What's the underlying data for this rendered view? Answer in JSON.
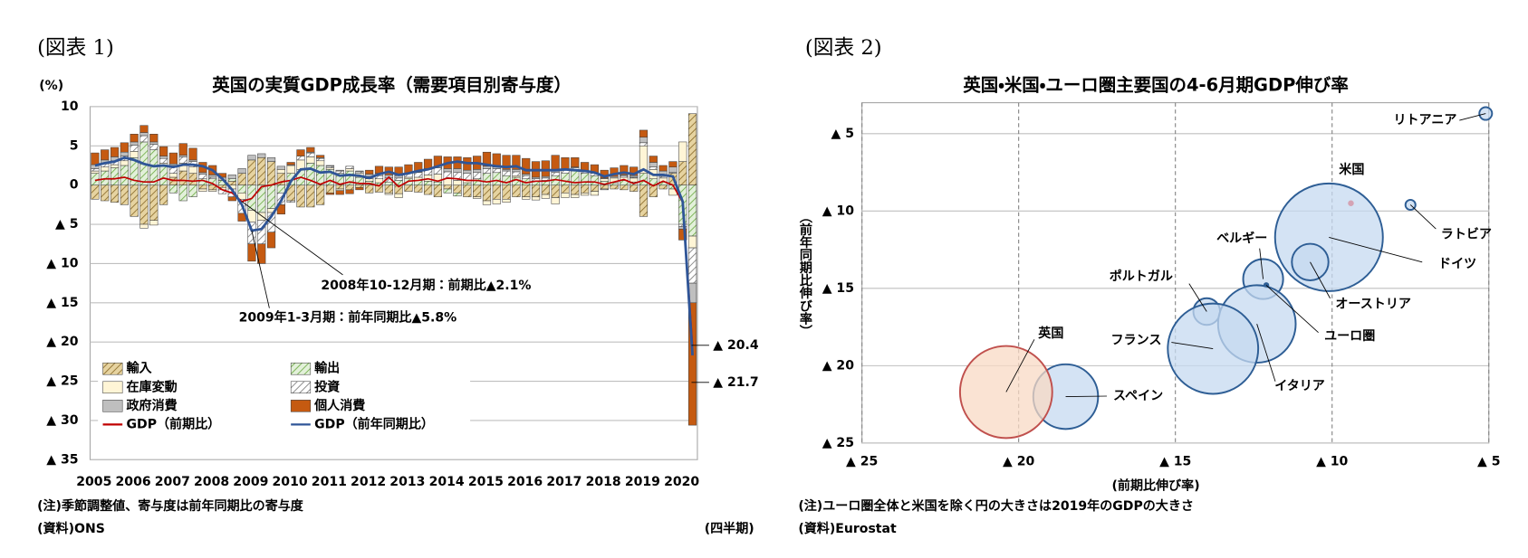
{
  "chart_data": [
    {
      "type": "bar",
      "figure_label": "(図表 1)",
      "title": "英国の実質GDP成長率（需要項目別寄与度）",
      "y_label": "(%)",
      "period_label": "(四半期)",
      "notes": [
        "(注)季節調整値、寄与度は前年同期比の寄与度",
        "(資料)ONS"
      ],
      "ylim": [
        -35,
        10
      ],
      "yticks": [
        10,
        5,
        0,
        {
          "value": -5,
          "label": "▲ 5"
        },
        {
          "value": -10,
          "label": "▲ 10"
        },
        {
          "value": -15,
          "label": "▲ 15"
        },
        {
          "value": -20,
          "label": "▲ 20"
        },
        {
          "value": -25,
          "label": "▲ 25"
        },
        {
          "value": -30,
          "label": "▲ 30"
        },
        {
          "value": -35,
          "label": "▲ 35"
        }
      ],
      "grid": true,
      "categories": [
        "2005",
        null,
        null,
        null,
        "2006",
        null,
        null,
        null,
        "2007",
        null,
        null,
        null,
        "2008",
        null,
        null,
        null,
        "2009",
        null,
        null,
        null,
        "2010",
        null,
        null,
        null,
        "2011",
        null,
        null,
        null,
        "2012",
        null,
        null,
        null,
        "2013",
        null,
        null,
        null,
        "2014",
        null,
        null,
        null,
        "2015",
        null,
        null,
        null,
        "2016",
        null,
        null,
        null,
        "2017",
        null,
        null,
        null,
        "2018",
        null,
        null,
        null,
        "2019",
        null,
        null,
        null,
        "2020",
        null
      ],
      "series": [
        {
          "name": "輸入",
          "type": "bar",
          "color": "#e6d3a0",
          "pattern": "hatch",
          "stripe_color": "#8c6d2c",
          "values": [
            -1.8,
            -2.0,
            -2.2,
            -2.5,
            -4.0,
            -5.0,
            -4.5,
            -2.5,
            1.0,
            1.8,
            1.5,
            -0.5,
            -0.6,
            -0.3,
            0.5,
            1.5,
            3.2,
            3.5,
            3.0,
            1.5,
            -2.0,
            -2.8,
            -2.8,
            -2.5,
            -1.0,
            -0.5,
            -0.6,
            -0.3,
            -1.0,
            -0.9,
            -1.0,
            -1.1,
            -0.8,
            -0.9,
            -1.2,
            -1.5,
            -0.5,
            -1.0,
            -1.5,
            -1.5,
            -2.0,
            -1.8,
            -1.8,
            -1.5,
            -1.5,
            -1.5,
            -1.2,
            -1.6,
            -1.0,
            -1.2,
            -1.0,
            -0.8,
            -0.5,
            -0.5,
            -0.6,
            -0.8,
            -4.0,
            -1.5,
            -0.5,
            1.5,
            3.0,
            9.1
          ]
        },
        {
          "name": "輸出",
          "type": "bar",
          "color": "#e2f0d9",
          "pattern": "hatch",
          "stripe_color": "#70ad47",
          "values": [
            1.5,
            1.8,
            2.2,
            2.5,
            3.5,
            5.5,
            4.5,
            2.5,
            -1.0,
            -2.0,
            -1.5,
            0.8,
            0.8,
            0.6,
            0.3,
            -1.0,
            -3.2,
            -3.5,
            -3.0,
            -1.0,
            1.5,
            2.0,
            2.8,
            2.5,
            2.0,
            1.5,
            1.8,
            1.0,
            0.5,
            0.3,
            0.4,
            0.6,
            0.8,
            0.6,
            0.5,
            0.4,
            -0.5,
            -0.4,
            0.3,
            0.8,
            1.5,
            1.6,
            1.2,
            1.0,
            0.8,
            0.5,
            0.6,
            1.2,
            1.5,
            1.8,
            1.5,
            1.2,
            0.5,
            0.3,
            0.6,
            0.4,
            1.5,
            0.8,
            0.4,
            -0.5,
            -5.0,
            -6.5
          ]
        },
        {
          "name": "在庫変動",
          "type": "bar",
          "color": "#fff5d6",
          "values": [
            0.3,
            0.5,
            0.4,
            0.6,
            0.8,
            -0.5,
            -0.6,
            0.3,
            0.5,
            1.0,
            0.8,
            -0.3,
            -0.2,
            -0.3,
            -0.5,
            -0.8,
            -1.5,
            -1.0,
            -0.5,
            0.5,
            1.0,
            1.2,
            0.8,
            0.6,
            0.2,
            -0.2,
            0.3,
            0.5,
            0.3,
            0.5,
            -0.2,
            -0.5,
            0.2,
            0.4,
            0.8,
            1.0,
            0.8,
            0.6,
            0.3,
            -0.2,
            -0.5,
            -0.6,
            -0.4,
            0.2,
            -0.3,
            -0.4,
            -0.5,
            -0.8,
            -0.6,
            -0.4,
            -0.3,
            -0.5,
            0.3,
            0.6,
            0.4,
            0.5,
            3.5,
            1.2,
            0.5,
            -0.8,
            2.5,
            -1.5
          ]
        },
        {
          "name": "投資",
          "type": "bar",
          "color": "#ffffff",
          "pattern": "hatch",
          "stripe_color": "#7f7f7f",
          "values": [
            0.3,
            0.4,
            0.5,
            0.6,
            0.8,
            0.8,
            0.7,
            0.6,
            1.0,
            0.8,
            0.7,
            0.6,
            0.2,
            -0.5,
            -1.0,
            -1.8,
            -2.8,
            -3.0,
            -2.5,
            -1.5,
            -0.2,
            0.5,
            0.5,
            0.3,
            0.2,
            0.3,
            0.3,
            0.2,
            0.3,
            0.4,
            0.5,
            0.3,
            0.5,
            0.6,
            0.7,
            0.8,
            0.9,
            1.0,
            0.9,
            0.8,
            0.6,
            0.5,
            0.6,
            0.5,
            0.4,
            0.3,
            0.3,
            0.4,
            0.5,
            0.4,
            0.3,
            0.3,
            -0.1,
            0.0,
            0.2,
            0.1,
            0.4,
            0.3,
            0.2,
            0.1,
            -0.3,
            -4.5
          ]
        },
        {
          "name": "政府消費",
          "type": "bar",
          "color": "#bfbfbf",
          "values": [
            0.5,
            0.5,
            0.5,
            0.5,
            0.4,
            0.4,
            0.3,
            0.3,
            0.2,
            0.2,
            0.2,
            0.2,
            0.3,
            0.4,
            0.5,
            0.6,
            0.6,
            0.5,
            0.5,
            0.4,
            0.1,
            0.0,
            0.1,
            0.1,
            0.1,
            0.1,
            0.0,
            0.1,
            0.3,
            0.3,
            0.4,
            0.3,
            0.0,
            0.1,
            0.1,
            0.2,
            0.4,
            0.5,
            0.4,
            0.4,
            0.3,
            0.2,
            0.2,
            0.3,
            0.2,
            0.2,
            0.2,
            0.2,
            0.0,
            0.1,
            0.1,
            0.1,
            0.1,
            0.2,
            0.1,
            0.2,
            0.7,
            0.6,
            0.7,
            0.7,
            -0.3,
            -2.5
          ]
        },
        {
          "name": "個人消費",
          "type": "bar",
          "color": "#c55a11",
          "values": [
            1.5,
            1.3,
            1.2,
            1.2,
            1.0,
            0.9,
            1.0,
            1.2,
            1.4,
            1.5,
            1.5,
            1.3,
            1.2,
            0.5,
            -0.5,
            -1.0,
            -2.2,
            -2.5,
            -2.0,
            -1.2,
            0.3,
            0.8,
            0.6,
            0.3,
            -0.2,
            -0.5,
            -0.5,
            -0.3,
            0.5,
            0.9,
            1.0,
            1.1,
            1.1,
            1.2,
            1.2,
            1.3,
            1.5,
            1.5,
            1.6,
            1.7,
            1.8,
            1.7,
            1.8,
            1.8,
            2.0,
            2.0,
            2.0,
            2.0,
            1.5,
            1.2,
            1.0,
            1.0,
            1.0,
            1.1,
            1.2,
            1.1,
            0.9,
            0.8,
            0.7,
            0.7,
            -1.4,
            -15.6
          ]
        },
        {
          "name": "GDP（前期比）",
          "type": "line",
          "color": "#c00000",
          "values": [
            0.6,
            0.8,
            0.8,
            1.0,
            0.6,
            0.4,
            0.4,
            0.9,
            0.6,
            0.6,
            0.5,
            0.6,
            0.2,
            -0.6,
            -1.0,
            -2.1,
            -1.7,
            -0.2,
            0.0,
            0.4,
            0.6,
            1.0,
            0.6,
            0.1,
            0.6,
            0.1,
            0.4,
            0.2,
            0.2,
            -0.1,
            1.0,
            -0.2,
            0.5,
            0.6,
            0.8,
            0.5,
            0.9,
            0.8,
            0.6,
            0.6,
            0.4,
            0.6,
            0.3,
            0.7,
            0.3,
            0.5,
            0.5,
            0.7,
            0.5,
            0.3,
            0.4,
            0.4,
            0.1,
            0.4,
            0.7,
            0.2,
            0.6,
            -0.1,
            0.5,
            0.0,
            -2.2,
            -20.4
          ]
        },
        {
          "name": "GDP（前年同期比）",
          "type": "line",
          "color": "#2f5597",
          "values": [
            2.5,
            2.8,
            3.0,
            3.5,
            3.2,
            2.7,
            2.4,
            2.5,
            2.3,
            2.6,
            2.6,
            2.4,
            1.9,
            0.8,
            -0.6,
            -2.5,
            -5.8,
            -5.6,
            -4.0,
            -2.0,
            0.5,
            2.0,
            2.1,
            1.6,
            1.7,
            1.2,
            1.3,
            1.2,
            0.9,
            1.4,
            1.7,
            1.3,
            1.5,
            1.8,
            2.0,
            2.4,
            2.8,
            3.0,
            2.8,
            2.8,
            2.6,
            2.4,
            2.3,
            2.4,
            1.9,
            1.9,
            1.9,
            1.9,
            2.0,
            1.9,
            1.8,
            1.6,
            1.1,
            1.4,
            1.6,
            1.4,
            2.0,
            1.3,
            1.3,
            1.1,
            -2.1,
            -21.7
          ]
        }
      ],
      "annotations": [
        "2008年10-12月期：前期比▲2.1%",
        "2009年1-3月期：前年同期比▲5.8%",
        "▲ 20.4",
        "▲ 21.7"
      ]
    },
    {
      "type": "scatter",
      "figure_label": "(図表 2)",
      "title": "英国・米国・ユーロ圏主要国の4-6月期GDP伸び率",
      "x_label": "(前期比伸び率)",
      "y_label": "（前年同期比伸び率）",
      "notes": [
        "(注)ユーロ圏全体と米国を除く円の大きさは2019年のGDPの大きさ",
        "(資料)Eurostat"
      ],
      "xlim": [
        -25,
        -5
      ],
      "xticks": [
        {
          "value": -25,
          "label": "▲ 25"
        },
        {
          "value": -20,
          "label": "▲ 20"
        },
        {
          "value": -15,
          "label": "▲ 15"
        },
        {
          "value": -10,
          "label": "▲ 10"
        },
        {
          "value": -5,
          "label": "▲ 5"
        }
      ],
      "ylim": [
        -25,
        -3
      ],
      "yticks": [
        {
          "value": -5,
          "label": "▲ 5"
        },
        {
          "value": -10,
          "label": "▲ 10"
        },
        {
          "value": -15,
          "label": "▲ 15"
        },
        {
          "value": -20,
          "label": "▲ 20"
        },
        {
          "value": -25,
          "label": "▲ 25"
        }
      ],
      "grid": true,
      "labels": [
        "リトアニア",
        "米国",
        "ラトビア",
        "ドイツ",
        "オーストリア",
        "ベルギー",
        "ポルトガル",
        "ユーロ圏",
        "イタリア",
        "フランス",
        "スペイン",
        "英国"
      ],
      "x": [
        -5.1,
        -9.4,
        -7.5,
        -10.1,
        -10.7,
        -12.2,
        -14.0,
        -12.1,
        -12.4,
        -13.8,
        -18.5,
        -20.4
      ],
      "y": [
        -3.7,
        -9.5,
        -9.6,
        -11.7,
        -13.3,
        -14.4,
        -16.5,
        -14.8,
        -17.3,
        -18.9,
        -22.0,
        -21.7
      ],
      "sizes": [
        48,
        null,
        30,
        3449,
        398,
        474,
        212,
        null,
        1788,
        2426,
        1245,
        2525
      ],
      "colors": [
        "#c5daf0",
        "#ff0000",
        "#c5daf0",
        "#c5daf0",
        "#c5daf0",
        "#c5daf0",
        "#c5daf0",
        "#2e5e95",
        "#c5daf0",
        "#c5daf0",
        "#c5daf0",
        "#f8d9c4"
      ],
      "edge_colors": [
        "#2e5e95",
        "#ff0000",
        "#2e5e95",
        "#2e5e95",
        "#2e5e95",
        "#2e5e95",
        "#2e5e95",
        "#2e5e95",
        "#2e5e95",
        "#2e5e95",
        "#2e5e95",
        "#c0504d"
      ]
    }
  ]
}
